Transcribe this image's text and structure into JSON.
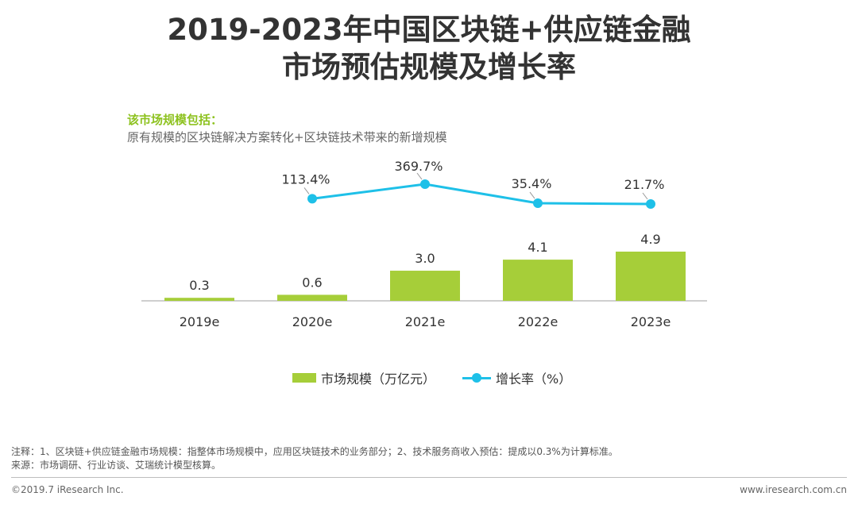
{
  "title": {
    "line1": "2019-2023年中国区块链+供应链金融",
    "line2": "市场预估规模及增长率"
  },
  "subtitle": {
    "head": "该市场规模包括：",
    "body": "原有规模的区块链解决方案转化+区块链技术带来的新增规模"
  },
  "chart_data": {
    "type": "bar",
    "categories": [
      "2019e",
      "2020e",
      "2021e",
      "2022e",
      "2023e"
    ],
    "series": [
      {
        "name": "市场规模（万亿元）",
        "type": "bar",
        "values": [
          0.3,
          0.6,
          3.0,
          4.1,
          4.9
        ],
        "labels": [
          "0.3",
          "0.6",
          "3.0",
          "4.1",
          "4.9"
        ],
        "color": "#A6CE39"
      },
      {
        "name": "增长率（%）",
        "type": "line",
        "values": [
          null,
          113.4,
          369.7,
          35.4,
          21.7
        ],
        "labels": [
          null,
          "113.4%",
          "369.7%",
          "35.4%",
          "21.7%"
        ],
        "color": "#1EC0E8"
      }
    ],
    "legend_position": "bottom-center",
    "grid": false
  },
  "legend": {
    "bar_label": "市场规模（万亿元）",
    "line_label": "增长率（%）"
  },
  "notes": {
    "line1": "注释：1、区块链+供应链金融市场规模：指整体市场规模中，应用区块链技术的业务部分；2、技术服务商收入预估：提成以0.3%为计算标准。",
    "line2": "来源：市场调研、行业访谈、艾瑞统计模型核算。"
  },
  "footer": {
    "copyright": "©2019.7 iResearch Inc.",
    "website": "www.iresearch.com.cn"
  }
}
